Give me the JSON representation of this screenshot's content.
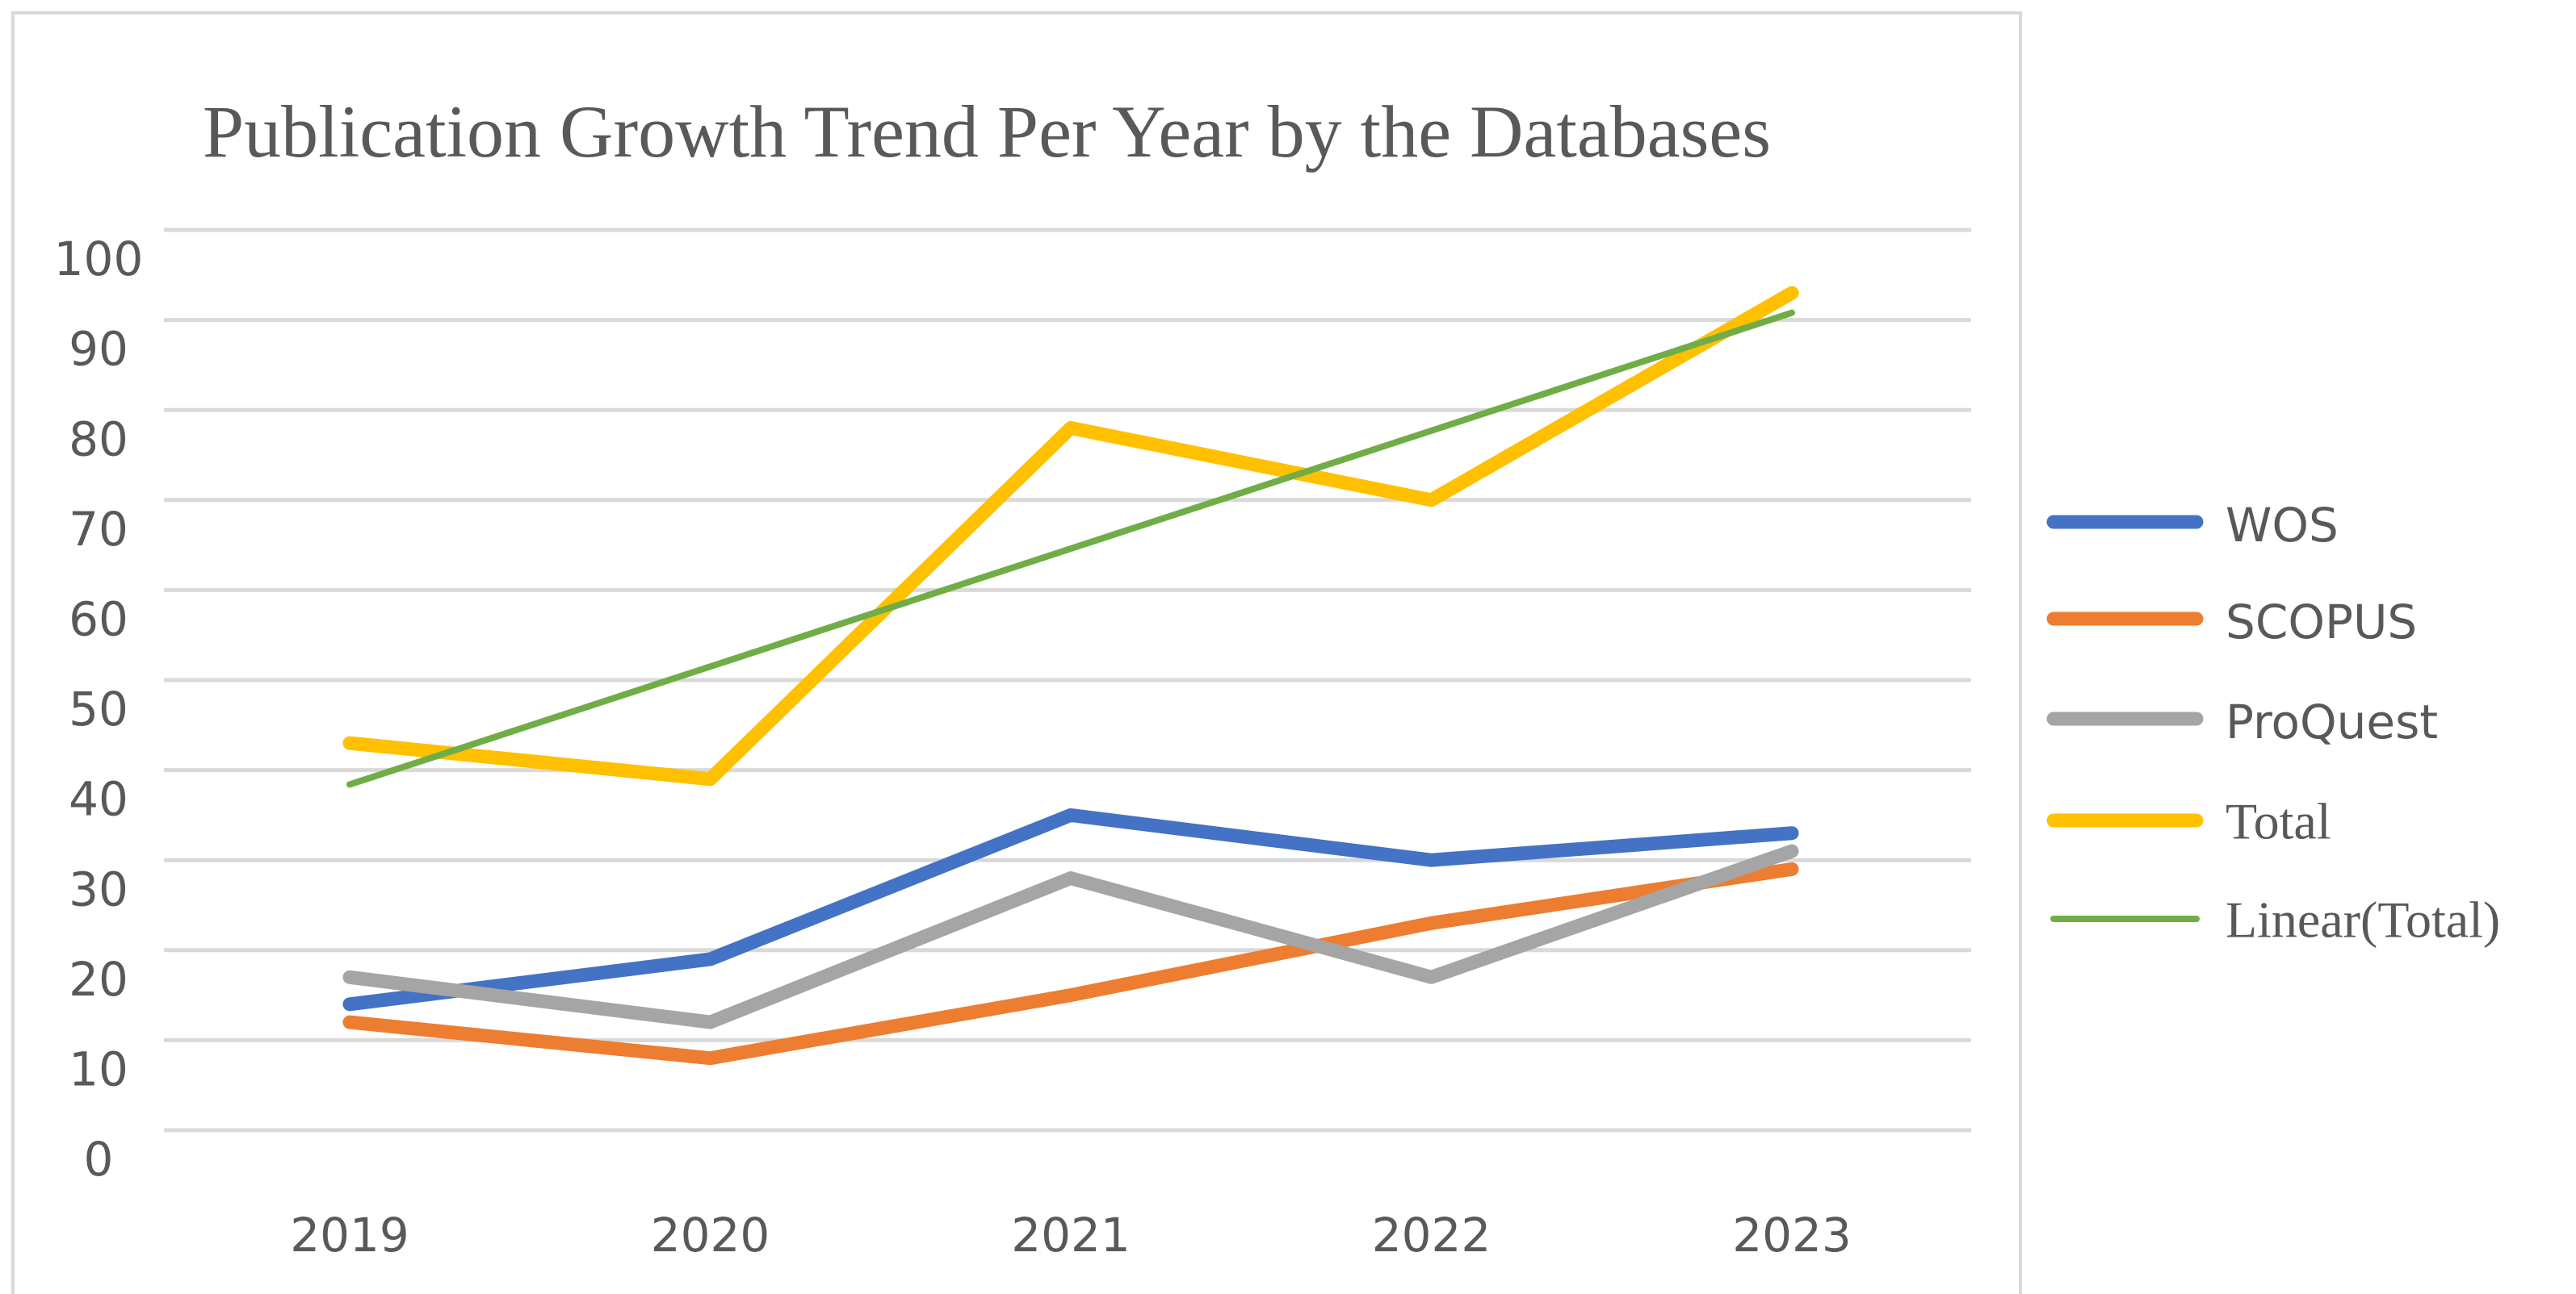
{
  "chart_data": {
    "type": "line",
    "title": "Publication Growth Trend Per Year by the Databases",
    "categories": [
      "2019",
      "2020",
      "2021",
      "2022",
      "2023"
    ],
    "series": [
      {
        "name": "WOS",
        "color": "#4472c4",
        "values": [
          14,
          19,
          35,
          30,
          33
        ]
      },
      {
        "name": "SCOPUS",
        "color": "#ed7d31",
        "values": [
          12,
          8,
          15,
          23,
          29
        ]
      },
      {
        "name": "ProQuest",
        "color": "#a5a5a5",
        "values": [
          17,
          12,
          28,
          17,
          31
        ]
      },
      {
        "name": "Total",
        "color": "#ffc000",
        "values": [
          43,
          39,
          78,
          70,
          93
        ]
      },
      {
        "name": "Linear(Total)",
        "color": "#70ad47",
        "values": [
          38.4,
          51.5,
          64.6,
          77.7,
          90.8
        ]
      }
    ],
    "ylim": [
      0,
      100
    ],
    "yticks": [
      0,
      10,
      20,
      30,
      40,
      50,
      60,
      70,
      80,
      90,
      100
    ],
    "grid": true,
    "legend": "right"
  }
}
